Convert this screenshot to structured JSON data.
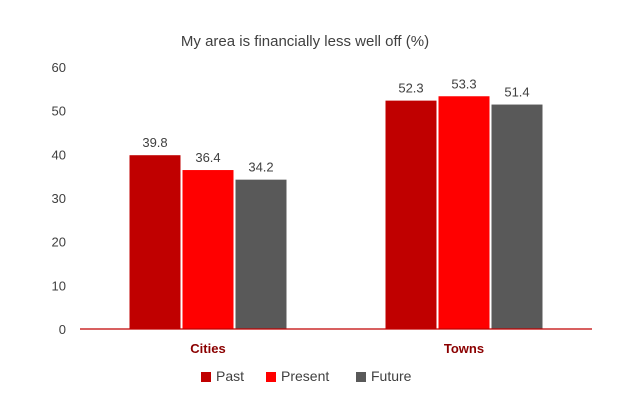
{
  "chart_data": {
    "type": "bar",
    "title": "My area is financially less well off (%)",
    "xlabel": "",
    "ylabel": "",
    "ylim": [
      0,
      60
    ],
    "yticks": [
      0,
      10,
      20,
      30,
      40,
      50,
      60
    ],
    "grid": false,
    "legend_position": "bottom",
    "categories": [
      "Cities",
      "Towns"
    ],
    "series": [
      {
        "name": "Past",
        "color": "#c00000",
        "values": [
          39.8,
          52.3
        ]
      },
      {
        "name": "Present",
        "color": "#ff0000",
        "values": [
          36.4,
          53.3
        ]
      },
      {
        "name": "Future",
        "color": "#595959",
        "values": [
          34.2,
          51.4
        ]
      }
    ],
    "axis_color": "#c00000",
    "category_label_color": "#8b0000"
  }
}
